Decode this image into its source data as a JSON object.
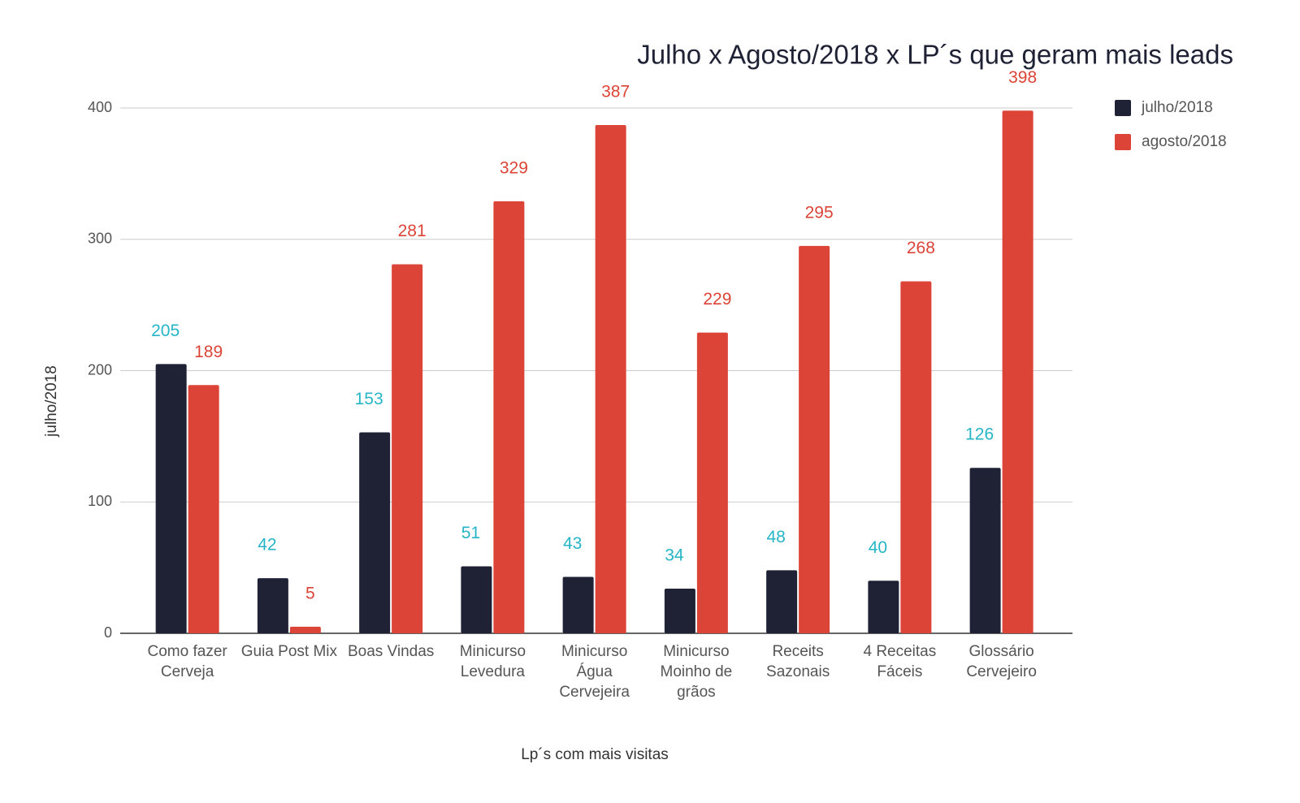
{
  "chart_data": {
    "type": "bar",
    "title": "Julho x Agosto/2018 x LP´s que geram mais leads",
    "x_label": "Lp´s com mais visitas",
    "y_label": "julho/2018",
    "categories": [
      "Como fazer Cerveja",
      "Guia Post Mix",
      "Boas Vindas",
      "Minicurso Levedura",
      "Minicurso Água Cervejeira",
      "Minicurso Moinho de grãos",
      "Receits Sazonais",
      "4 Receitas Fáceis",
      "Glossário Cervejeiro"
    ],
    "series": [
      {
        "name": "julho/2018",
        "color": "#1f2235",
        "label_color": "#26b5c7",
        "values": [
          205,
          42,
          153,
          51,
          43,
          34,
          48,
          40,
          126
        ]
      },
      {
        "name": "agosto/2018",
        "color": "#db4437",
        "label_color": "#db4437",
        "values": [
          189,
          5,
          281,
          329,
          387,
          229,
          295,
          268,
          398
        ]
      }
    ],
    "ylim": [
      0,
      400
    ],
    "yticks": [
      0,
      100,
      200,
      300,
      400
    ],
    "grid": true,
    "legend": "top-right"
  }
}
